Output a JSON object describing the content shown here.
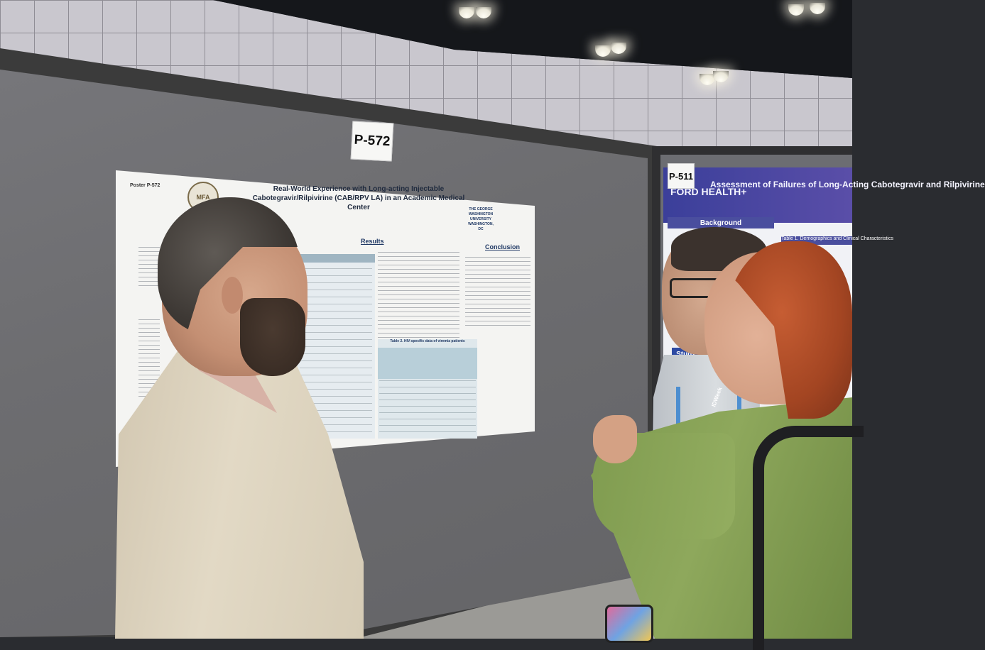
{
  "scene": {
    "main_poster_number": "P-572",
    "right_poster_number": "P-511",
    "main_poster": {
      "label": "Poster P-572",
      "seal_text": "MFA",
      "title": "Real-World Experience with Long-acting Injectable Cabotegravir/Rilpivirine (CAB/RPV LA) in an Academic Medical Center",
      "university_logo": "THE GEORGE WASHINGTON UNIVERSITY WASHINGTON, DC",
      "results_heading": "Results",
      "conclusion_heading": "Conclusion",
      "table2_caption": "Table 2. HIV-specific data of viremia patients"
    },
    "right_poster": {
      "org": "FORD HEALTH+",
      "title": "Assessment of Failures of Long-Acting Cabotegravir and Rilpivirine",
      "background_heading": "Background",
      "study_label": "Study",
      "table_heading": "Table 1. Demographics and Clinical Characteristics"
    },
    "lanyard_text": "IDWeek"
  }
}
